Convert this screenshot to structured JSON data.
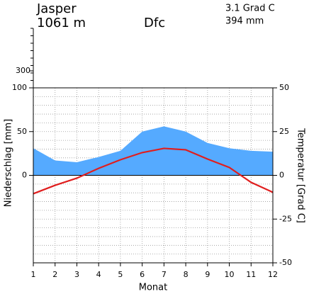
{
  "chart_data": {
    "type": "climate",
    "station": "Jasper",
    "elevation": "1061 m",
    "climate_class": "Dfc",
    "mean_temperature": "3.1 Grad C",
    "annual_precipitation": "394 mm",
    "ylabel": "Niederschlag [mm]",
    "y2label": "Temperatur [Grad C]",
    "xlabel": "Monat",
    "x": [
      1,
      2,
      3,
      4,
      5,
      6,
      7,
      8,
      9,
      10,
      11,
      12
    ],
    "xlim": [
      1,
      12
    ],
    "xticks": [
      1,
      2,
      3,
      4,
      5,
      6,
      7,
      8,
      9,
      10,
      11,
      12
    ],
    "ylim": [
      -100,
      100
    ],
    "yticks": [
      0,
      50,
      100
    ],
    "upper_ylim": [
      100,
      800
    ],
    "upper_yticks": [
      300
    ],
    "y2lim": [
      -50,
      50
    ],
    "y2ticks": [
      -50,
      -25,
      0,
      25,
      50
    ],
    "grid": true,
    "series": [
      {
        "name": "Niederschlag",
        "color": "#55aaff",
        "values": [
          31,
          17,
          15,
          21,
          28,
          50,
          56,
          50,
          37,
          31,
          28,
          27
        ]
      },
      {
        "name": "Temperatur",
        "color": "#e01e1e",
        "axis": "y2",
        "values": [
          -10.5,
          -5.7,
          -1.6,
          4,
          8.9,
          13,
          15.4,
          14.6,
          9.3,
          4.5,
          -4,
          -9.7
        ]
      }
    ]
  }
}
